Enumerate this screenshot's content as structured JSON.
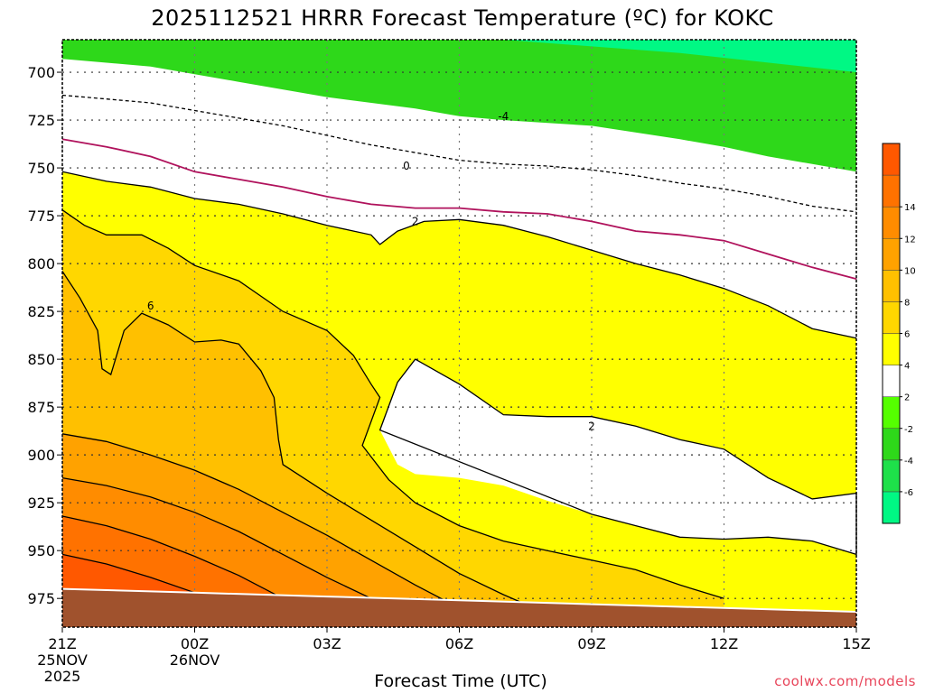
{
  "chart_data": {
    "type": "contour",
    "title": "2025112521 HRRR Forecast Temperature (ºC) for KOKC",
    "xlabel": "Forecast Time (UTC)",
    "credit": "coolwx.com/models",
    "y_axis": {
      "quantity": "pressure (hPa)",
      "ticks": [
        700,
        725,
        750,
        775,
        800,
        825,
        850,
        875,
        900,
        925,
        950,
        975
      ],
      "range": [
        683,
        990
      ],
      "inverted": true
    },
    "x_axis": {
      "ticks": [
        {
          "hour": 0,
          "label": "21Z",
          "sub1": "25NOV",
          "sub2": "2025"
        },
        {
          "hour": 3,
          "label": "00Z",
          "sub1": "26NOV",
          "sub2": ""
        },
        {
          "hour": 6,
          "label": "03Z",
          "sub1": "",
          "sub2": ""
        },
        {
          "hour": 9,
          "label": "06Z",
          "sub1": "",
          "sub2": ""
        },
        {
          "hour": 12,
          "label": "09Z",
          "sub1": "",
          "sub2": ""
        },
        {
          "hour": 15,
          "label": "12Z",
          "sub1": "",
          "sub2": ""
        },
        {
          "hour": 18,
          "label": "15Z",
          "sub1": "",
          "sub2": ""
        }
      ],
      "range": [
        0,
        18
      ]
    },
    "colorbar": {
      "levels": [
        -8,
        -6,
        -4,
        -2,
        2,
        4,
        6,
        8,
        10,
        12,
        14,
        16
      ],
      "tick_labels": [
        "-6",
        "-4",
        "-2",
        "2",
        "4",
        "6",
        "8",
        "10",
        "12",
        "14"
      ],
      "colors": [
        "#00f884",
        "#1ee04a",
        "#2ed81a",
        "#55ff00",
        "#ffffff",
        "#ffff00",
        "#ffd700",
        "#ffc000",
        "#ffa200",
        "#ff8c00",
        "#ff7200",
        "#ff5800"
      ]
    },
    "contours": [
      {
        "level": -4,
        "label": "-4",
        "color": "#000000",
        "dashed": true,
        "points": [
          [
            0,
            712
          ],
          [
            1,
            714
          ],
          [
            2,
            716
          ],
          [
            3,
            720
          ],
          [
            4,
            724
          ],
          [
            5,
            728
          ],
          [
            6,
            733
          ],
          [
            7,
            738
          ],
          [
            8,
            742
          ],
          [
            9,
            746
          ],
          [
            10,
            748
          ],
          [
            11,
            749
          ],
          [
            12,
            751
          ],
          [
            13,
            754
          ],
          [
            14,
            758
          ],
          [
            15,
            761
          ],
          [
            16,
            765
          ],
          [
            17,
            770
          ],
          [
            18,
            773
          ]
        ]
      },
      {
        "level": 0,
        "label": "0",
        "color": "#b0125c",
        "dashed": false,
        "points": [
          [
            0,
            735
          ],
          [
            1,
            739
          ],
          [
            2,
            744
          ],
          [
            3,
            752
          ],
          [
            4,
            756
          ],
          [
            5,
            760
          ],
          [
            6,
            765
          ],
          [
            7,
            769
          ],
          [
            8,
            771
          ],
          [
            9,
            771
          ],
          [
            10,
            773
          ],
          [
            11,
            774
          ],
          [
            12,
            778
          ],
          [
            13,
            783
          ],
          [
            14,
            785
          ],
          [
            15,
            788
          ],
          [
            16,
            795
          ],
          [
            17,
            802
          ],
          [
            18,
            808
          ]
        ]
      },
      {
        "level": 2,
        "label": "2",
        "color": "#000000",
        "dashed": false,
        "points": [
          [
            0,
            752
          ],
          [
            1,
            757
          ],
          [
            2,
            760
          ],
          [
            3,
            766
          ],
          [
            4,
            769
          ],
          [
            5,
            774
          ],
          [
            6,
            780
          ],
          [
            7,
            785
          ],
          [
            7.2,
            790
          ],
          [
            7.6,
            783
          ],
          [
            8.2,
            778
          ],
          [
            9,
            777
          ],
          [
            10,
            780
          ],
          [
            11,
            786
          ],
          [
            12,
            793
          ],
          [
            13,
            800
          ],
          [
            14,
            806
          ],
          [
            15,
            813
          ],
          [
            16,
            822
          ],
          [
            17,
            834
          ],
          [
            18,
            839
          ]
        ]
      },
      {
        "level": 4,
        "label": "",
        "color": "#000000",
        "dashed": false,
        "points": [
          [
            0,
            772
          ],
          [
            0.5,
            780
          ],
          [
            1,
            785
          ],
          [
            1.8,
            785
          ],
          [
            2.4,
            792
          ],
          [
            3,
            801
          ],
          [
            4,
            809
          ],
          [
            5,
            825
          ],
          [
            6,
            835
          ],
          [
            6.6,
            848
          ],
          [
            7,
            863
          ],
          [
            7.2,
            870
          ],
          [
            6.8,
            895
          ],
          [
            7.4,
            913
          ],
          [
            8,
            925
          ],
          [
            9,
            937
          ],
          [
            10,
            945
          ],
          [
            11,
            950
          ],
          [
            12,
            955
          ],
          [
            13,
            960
          ],
          [
            14,
            968
          ],
          [
            15,
            975
          ]
        ]
      },
      {
        "level": 6,
        "label": "6",
        "color": "#000000",
        "dashed": false,
        "points": [
          [
            0,
            804
          ],
          [
            0.4,
            818
          ],
          [
            0.8,
            835
          ],
          [
            0.9,
            855
          ],
          [
            1.1,
            858
          ],
          [
            1.4,
            835
          ],
          [
            1.8,
            826
          ],
          [
            2.4,
            832
          ],
          [
            3,
            841
          ],
          [
            3.6,
            840
          ],
          [
            4,
            842
          ],
          [
            4.5,
            856
          ],
          [
            4.8,
            870
          ],
          [
            4.9,
            892
          ],
          [
            5,
            905
          ],
          [
            6,
            920
          ],
          [
            7,
            934
          ],
          [
            8,
            948
          ],
          [
            9,
            962
          ],
          [
            10,
            973
          ],
          [
            11,
            983
          ]
        ]
      },
      {
        "level": 8,
        "label": "",
        "color": "#000000",
        "dashed": false,
        "points": [
          [
            0,
            889
          ],
          [
            1,
            893
          ],
          [
            2,
            900
          ],
          [
            3,
            908
          ],
          [
            4,
            918
          ],
          [
            5,
            930
          ],
          [
            6,
            942
          ],
          [
            7,
            955
          ],
          [
            8,
            968
          ],
          [
            9,
            980
          ]
        ]
      },
      {
        "level": 10,
        "label": "",
        "color": "#000000",
        "dashed": false,
        "points": [
          [
            0,
            912
          ],
          [
            1,
            916
          ],
          [
            2,
            922
          ],
          [
            3,
            930
          ],
          [
            4,
            940
          ],
          [
            5,
            952
          ],
          [
            6,
            964
          ],
          [
            7,
            975
          ]
        ]
      },
      {
        "level": 12,
        "label": "",
        "color": "#000000",
        "dashed": false,
        "points": [
          [
            0,
            932
          ],
          [
            1,
            937
          ],
          [
            2,
            944
          ],
          [
            3,
            953
          ],
          [
            4,
            963
          ],
          [
            5,
            975
          ]
        ]
      },
      {
        "level": 14,
        "label": "",
        "color": "#000000",
        "dashed": false,
        "points": [
          [
            0,
            952
          ],
          [
            1,
            957
          ],
          [
            2,
            964
          ],
          [
            3,
            972
          ],
          [
            3.6,
            978
          ]
        ]
      }
    ],
    "warm_bubble": {
      "level": 2,
      "points": [
        [
          7.2,
          887
        ],
        [
          7.6,
          862
        ],
        [
          8,
          850
        ],
        [
          9,
          863
        ],
        [
          10,
          879
        ],
        [
          11,
          880
        ],
        [
          12,
          880
        ],
        [
          13,
          885
        ],
        [
          14,
          892
        ],
        [
          15,
          897
        ],
        [
          16,
          912
        ],
        [
          17,
          923
        ],
        [
          18,
          920
        ],
        [
          18,
          952
        ],
        [
          17,
          945
        ],
        [
          16,
          943
        ],
        [
          15,
          944
        ],
        [
          14,
          943
        ],
        [
          13,
          937
        ],
        [
          12,
          931
        ],
        [
          11,
          924
        ],
        [
          10,
          916
        ],
        [
          9,
          912
        ],
        [
          8,
          910
        ],
        [
          7.6,
          905
        ]
      ]
    },
    "terrain": {
      "color": "#a0522d",
      "points": [
        [
          0,
          970
        ],
        [
          3,
          972
        ],
        [
          6,
          974
        ],
        [
          9,
          976
        ],
        [
          12,
          978
        ],
        [
          15,
          980
        ],
        [
          18,
          982
        ]
      ]
    },
    "grid": true
  }
}
